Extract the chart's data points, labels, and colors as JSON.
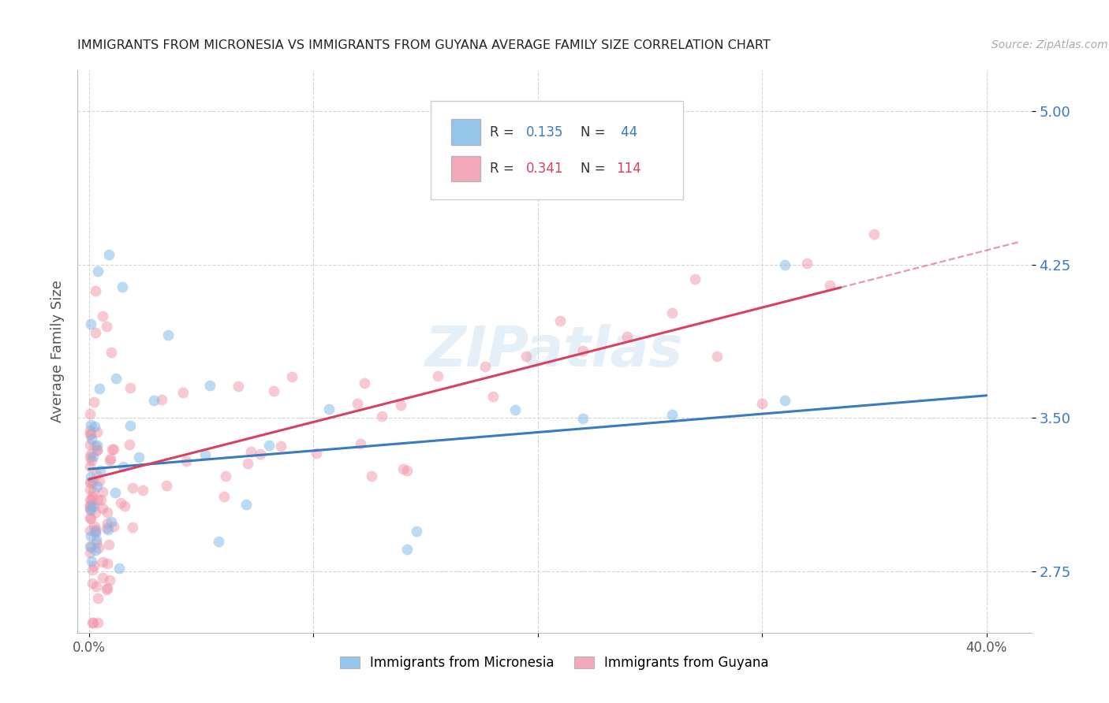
{
  "title": "IMMIGRANTS FROM MICRONESIA VS IMMIGRANTS FROM GUYANA AVERAGE FAMILY SIZE CORRELATION CHART",
  "source": "Source: ZipAtlas.com",
  "ylabel": "Average Family Size",
  "xlabel_ticks": [
    "0.0%",
    "",
    "",
    "",
    "40.0%"
  ],
  "xlabel_vals": [
    0.0,
    0.1,
    0.2,
    0.3,
    0.4
  ],
  "yticks": [
    2.75,
    3.5,
    4.25,
    5.0
  ],
  "xlim": [
    -0.005,
    0.42
  ],
  "ylim": [
    2.45,
    5.2
  ],
  "micronesia_color": "#7ab8e8",
  "guyana_color": "#f094a8",
  "micronesia_line_color": "#3a7abf",
  "guyana_line_color": "#d94060",
  "micronesia_R": "0.135",
  "micronesia_N": "44",
  "guyana_R": "0.341",
  "guyana_N": "114",
  "r_n_color_blue": "#3a7abf",
  "r_n_color_pink": "#d94060",
  "watermark": "ZIPatlas"
}
